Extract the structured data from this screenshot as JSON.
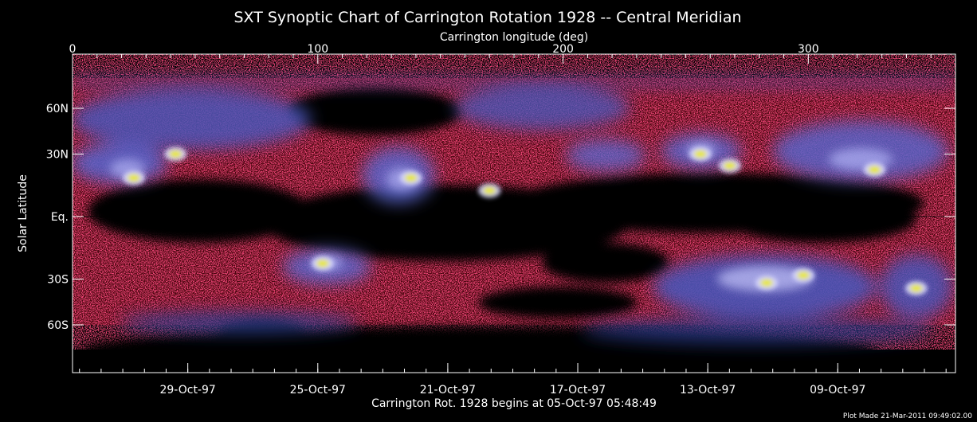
{
  "chart_data": {
    "type": "heatmap",
    "title": "SXT Synoptic Chart of Carrington Rotation 1928 -- Central Meridian",
    "top_axis": {
      "label": "Carrington longitude (deg)",
      "range": [
        0,
        360
      ],
      "ticks": [
        {
          "value": 0,
          "label": "0"
        },
        {
          "value": 100,
          "label": "100"
        },
        {
          "value": 200,
          "label": "200"
        },
        {
          "value": 300,
          "label": "300"
        }
      ]
    },
    "y_axis": {
      "label": "Solar Latitude",
      "ticks": [
        {
          "value": 60,
          "label": "60N"
        },
        {
          "value": 30,
          "label": "30N"
        },
        {
          "value": 0,
          "label": "Eq."
        },
        {
          "value": -30,
          "label": "30S"
        },
        {
          "value": -60,
          "label": "60S"
        }
      ]
    },
    "bottom_axis": {
      "label": "Carrington Rot. 1928 begins at 05-Oct-97 05:48:49",
      "ticks": [
        {
          "value": 47,
          "label": "29-Oct-97"
        },
        {
          "value": 100,
          "label": "25-Oct-97"
        },
        {
          "value": 153,
          "label": "21-Oct-97"
        },
        {
          "value": 206,
          "label": "17-Oct-97"
        },
        {
          "value": 259,
          "label": "13-Oct-97"
        },
        {
          "value": 312,
          "label": "09-Oct-97"
        }
      ]
    },
    "footer": "Plot Made 21-Mar-2011 09:49:02.00",
    "colormap": [
      "#000000",
      "#c8102e",
      "#2a3d8f",
      "#6f74d8",
      "#c8c8f8",
      "#e6e630"
    ],
    "bright_regions": [
      {
        "lon": 25,
        "lat": 18
      },
      {
        "lon": 42,
        "lat": 30
      },
      {
        "lon": 138,
        "lat": 18
      },
      {
        "lon": 170,
        "lat": 12
      },
      {
        "lon": 256,
        "lat": 30
      },
      {
        "lon": 268,
        "lat": 24
      },
      {
        "lon": 327,
        "lat": 22
      },
      {
        "lon": 102,
        "lat": -22
      },
      {
        "lon": 283,
        "lat": -32
      },
      {
        "lon": 298,
        "lat": -28
      },
      {
        "lon": 344,
        "lat": -35
      }
    ]
  }
}
